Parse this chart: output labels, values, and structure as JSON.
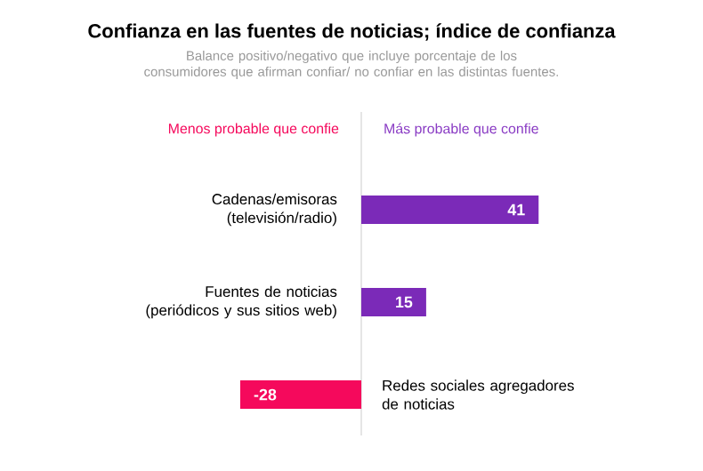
{
  "chart_data": {
    "type": "bar",
    "orientation": "horizontal",
    "title": "Confianza en las fuentes de noticias; índice de confianza",
    "subtitle": "Balance positivo/negativo que incluye porcentaje de los consumidores que afirman confiar/ no confiar en las distintas fuentes.",
    "annotations": [
      "Menos probable que confie",
      "Más probable que confie"
    ],
    "categories": [
      "Cadenas/emisoras (televisión/radio)",
      "Fuentes de noticias (periódicos y sus sitios web)",
      "Redes sociales agregadores de noticias"
    ],
    "values": [
      41,
      15,
      -28
    ],
    "colors": [
      "#7b2ab8",
      "#7b2ab8",
      "#f5095c"
    ],
    "data_labels": true
  }
}
